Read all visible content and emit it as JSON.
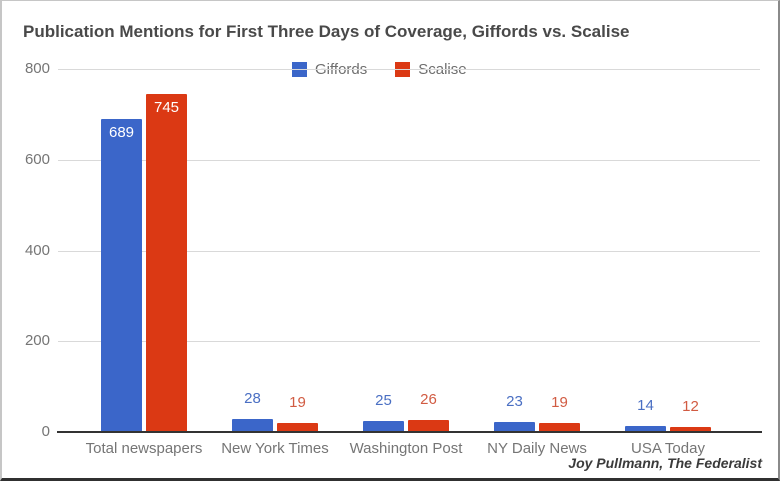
{
  "title": "Publication Mentions for First Three Days of Coverage, Giffords vs. Scalise",
  "attribution": "Joy Pullmann, The Federalist",
  "chart_data": {
    "type": "bar",
    "title": "Publication Mentions for First Three Days of Coverage, Giffords vs. Scalise",
    "categories": [
      "Total newspapers",
      "New York Times",
      "Washington Post",
      "NY Daily News",
      "USA Today"
    ],
    "series": [
      {
        "name": "Giffords",
        "color": "#3B66C9",
        "annotation_color": "#4A6FC3",
        "values": [
          689,
          28,
          25,
          23,
          14
        ]
      },
      {
        "name": "Scalise",
        "color": "#DB3914",
        "annotation_color": "#D15B42",
        "values": [
          745,
          19,
          26,
          19,
          12
        ]
      }
    ],
    "xlabel": "",
    "ylabel": "",
    "ylim": [
      0,
      800
    ],
    "yticks": [
      800,
      600,
      400,
      200,
      0
    ],
    "grid": true,
    "legend_position": "top-center",
    "annotations": "each bar labeled with its value"
  },
  "colors": {
    "giffords_blue": "#3B66C9",
    "scalise_red": "#DB3914",
    "title_text": "#494949",
    "axis_text": "#757575",
    "gridline": "#d9d9d9",
    "baseline": "#333333"
  }
}
